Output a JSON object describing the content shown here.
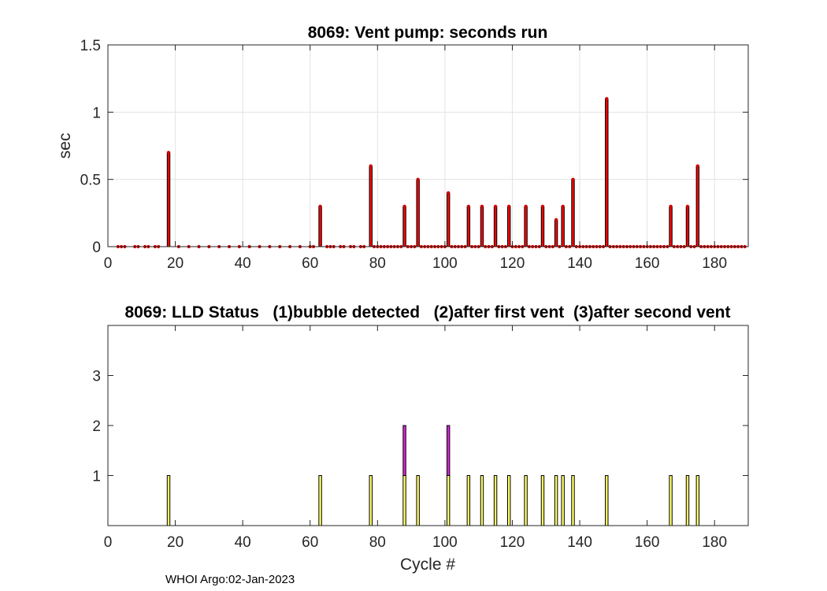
{
  "chart_data": [
    {
      "type": "bar",
      "title": "8069: Vent pump: seconds run",
      "xlabel": "",
      "ylabel": "sec",
      "xlim": [
        0,
        190
      ],
      "ylim": [
        0,
        1.5
      ],
      "xticks": [
        0,
        20,
        40,
        60,
        80,
        100,
        120,
        140,
        160,
        180
      ],
      "yticks": [
        0,
        0.5,
        1,
        1.5
      ],
      "ytick_labels": [
        "0",
        "0.5",
        "1",
        "1.5"
      ],
      "grid": true,
      "bar_color": "#ff0000",
      "bar_edge_color": "#000000",
      "marker_color": "#d40000",
      "points": [
        [
          3,
          0
        ],
        [
          4,
          0
        ],
        [
          5,
          0
        ],
        [
          8,
          0
        ],
        [
          9,
          0
        ],
        [
          11,
          0
        ],
        [
          12,
          0
        ],
        [
          14,
          0
        ],
        [
          15,
          0
        ],
        [
          18,
          0.7
        ],
        [
          21,
          0
        ],
        [
          24,
          0
        ],
        [
          27,
          0
        ],
        [
          30,
          0
        ],
        [
          33,
          0
        ],
        [
          36,
          0
        ],
        [
          39,
          0
        ],
        [
          42,
          0
        ],
        [
          45,
          0
        ],
        [
          48,
          0
        ],
        [
          51,
          0
        ],
        [
          54,
          0
        ],
        [
          57,
          0
        ],
        [
          60,
          0
        ],
        [
          61,
          0
        ],
        [
          63,
          0.3
        ],
        [
          65,
          0
        ],
        [
          66,
          0
        ],
        [
          67,
          0
        ],
        [
          69,
          0
        ],
        [
          70,
          0
        ],
        [
          72,
          0
        ],
        [
          73,
          0
        ],
        [
          75,
          0
        ],
        [
          76,
          0
        ],
        [
          78,
          0.6
        ],
        [
          79,
          0
        ],
        [
          80,
          0
        ],
        [
          81,
          0
        ],
        [
          82,
          0
        ],
        [
          83,
          0
        ],
        [
          84,
          0
        ],
        [
          85,
          0
        ],
        [
          86,
          0
        ],
        [
          87,
          0
        ],
        [
          88,
          0.3
        ],
        [
          89,
          0
        ],
        [
          90,
          0
        ],
        [
          91,
          0
        ],
        [
          92,
          0.5
        ],
        [
          93,
          0
        ],
        [
          94,
          0
        ],
        [
          95,
          0
        ],
        [
          96,
          0
        ],
        [
          97,
          0
        ],
        [
          98,
          0
        ],
        [
          99,
          0
        ],
        [
          100,
          0
        ],
        [
          101,
          0.4
        ],
        [
          102,
          0
        ],
        [
          103,
          0
        ],
        [
          104,
          0
        ],
        [
          105,
          0
        ],
        [
          106,
          0
        ],
        [
          107,
          0.3
        ],
        [
          108,
          0
        ],
        [
          109,
          0
        ],
        [
          110,
          0
        ],
        [
          111,
          0.3
        ],
        [
          112,
          0
        ],
        [
          113,
          0
        ],
        [
          114,
          0
        ],
        [
          115,
          0.3
        ],
        [
          116,
          0
        ],
        [
          117,
          0
        ],
        [
          118,
          0
        ],
        [
          119,
          0.3
        ],
        [
          120,
          0
        ],
        [
          121,
          0
        ],
        [
          122,
          0
        ],
        [
          123,
          0
        ],
        [
          124,
          0.3
        ],
        [
          125,
          0
        ],
        [
          126,
          0
        ],
        [
          127,
          0
        ],
        [
          128,
          0
        ],
        [
          129,
          0.3
        ],
        [
          130,
          0
        ],
        [
          131,
          0
        ],
        [
          132,
          0
        ],
        [
          133,
          0.2
        ],
        [
          134,
          0
        ],
        [
          135,
          0.3
        ],
        [
          136,
          0
        ],
        [
          137,
          0
        ],
        [
          138,
          0.5
        ],
        [
          139,
          0
        ],
        [
          140,
          0
        ],
        [
          141,
          0
        ],
        [
          142,
          0
        ],
        [
          143,
          0
        ],
        [
          144,
          0
        ],
        [
          145,
          0
        ],
        [
          146,
          0
        ],
        [
          147,
          0
        ],
        [
          148,
          1.1
        ],
        [
          149,
          0
        ],
        [
          150,
          0
        ],
        [
          151,
          0
        ],
        [
          152,
          0
        ],
        [
          153,
          0
        ],
        [
          154,
          0
        ],
        [
          155,
          0
        ],
        [
          156,
          0
        ],
        [
          157,
          0
        ],
        [
          158,
          0
        ],
        [
          159,
          0
        ],
        [
          160,
          0
        ],
        [
          161,
          0
        ],
        [
          162,
          0
        ],
        [
          163,
          0
        ],
        [
          164,
          0
        ],
        [
          165,
          0
        ],
        [
          166,
          0
        ],
        [
          167,
          0.3
        ],
        [
          168,
          0
        ],
        [
          169,
          0
        ],
        [
          170,
          0
        ],
        [
          171,
          0
        ],
        [
          172,
          0.3
        ],
        [
          173,
          0
        ],
        [
          174,
          0
        ],
        [
          175,
          0.6
        ],
        [
          176,
          0
        ],
        [
          177,
          0
        ],
        [
          178,
          0
        ],
        [
          179,
          0
        ],
        [
          180,
          0
        ],
        [
          181,
          0
        ],
        [
          182,
          0
        ],
        [
          183,
          0
        ],
        [
          184,
          0
        ],
        [
          185,
          0
        ],
        [
          186,
          0
        ],
        [
          187,
          0
        ],
        [
          188,
          0
        ],
        [
          189,
          0
        ]
      ]
    },
    {
      "type": "bar",
      "title": "8069: LLD Status   (1)bubble detected   (2)after first vent  (3)after second vent",
      "xlabel": "Cycle #",
      "ylabel": "",
      "xlim": [
        0,
        190
      ],
      "ylim": [
        0,
        4
      ],
      "xticks": [
        0,
        20,
        40,
        60,
        80,
        100,
        120,
        140,
        160,
        180
      ],
      "yticks": [
        1,
        2,
        3
      ],
      "ytick_labels": [
        "1",
        "2",
        "3"
      ],
      "grid": false,
      "status_colors": {
        "1": "#ffff66",
        "2": "#e020e0",
        "3": "#00b0ff"
      },
      "bars": [
        {
          "x": 18,
          "status": 1
        },
        {
          "x": 63,
          "status": 1
        },
        {
          "x": 78,
          "status": 1
        },
        {
          "x": 88,
          "status": 2
        },
        {
          "x": 92,
          "status": 1
        },
        {
          "x": 101,
          "status": 2
        },
        {
          "x": 107,
          "status": 1
        },
        {
          "x": 111,
          "status": 1
        },
        {
          "x": 115,
          "status": 1
        },
        {
          "x": 119,
          "status": 1
        },
        {
          "x": 124,
          "status": 1
        },
        {
          "x": 129,
          "status": 1
        },
        {
          "x": 133,
          "status": 1
        },
        {
          "x": 135,
          "status": 1
        },
        {
          "x": 138,
          "status": 1
        },
        {
          "x": 148,
          "status": 1
        },
        {
          "x": 167,
          "status": 1
        },
        {
          "x": 172,
          "status": 1
        },
        {
          "x": 175,
          "status": 1
        }
      ]
    }
  ],
  "footer": "WHOI Argo:02-Jan-2023"
}
